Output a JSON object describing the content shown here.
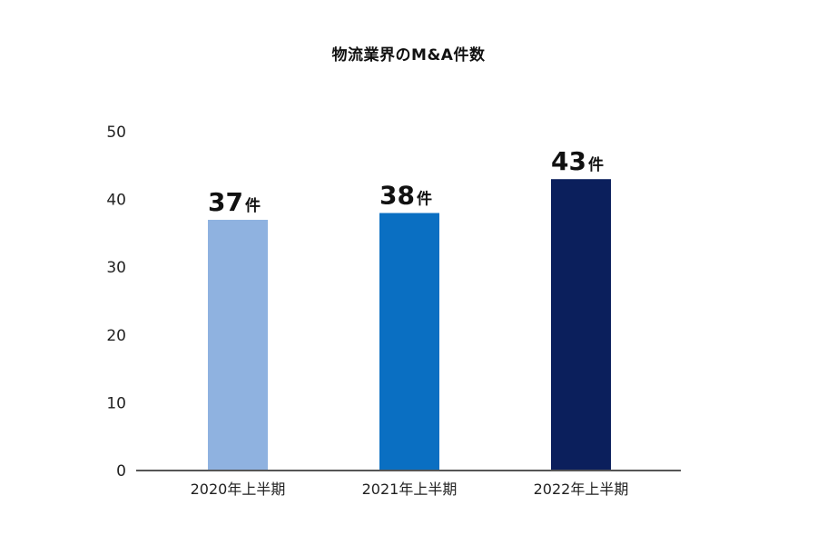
{
  "chart_data": {
    "type": "bar",
    "title": "物流業界のM&A件数",
    "xlabel": "",
    "ylabel": "",
    "categories": [
      "2020年上半期",
      "2021年上半期",
      "2022年上半期"
    ],
    "values": [
      37,
      38,
      43
    ],
    "data_labels": [
      {
        "number": "37",
        "unit": "件"
      },
      {
        "number": "38",
        "unit": "件"
      },
      {
        "number": "43",
        "unit": "件"
      }
    ],
    "bar_colors": [
      "#8fb2e0",
      "#0a6fc2",
      "#0b1f5c"
    ],
    "ylim": [
      0,
      50
    ],
    "yticks": [
      "0",
      "10",
      "20",
      "30",
      "40",
      "50"
    ],
    "grid": false,
    "legend": "none"
  }
}
